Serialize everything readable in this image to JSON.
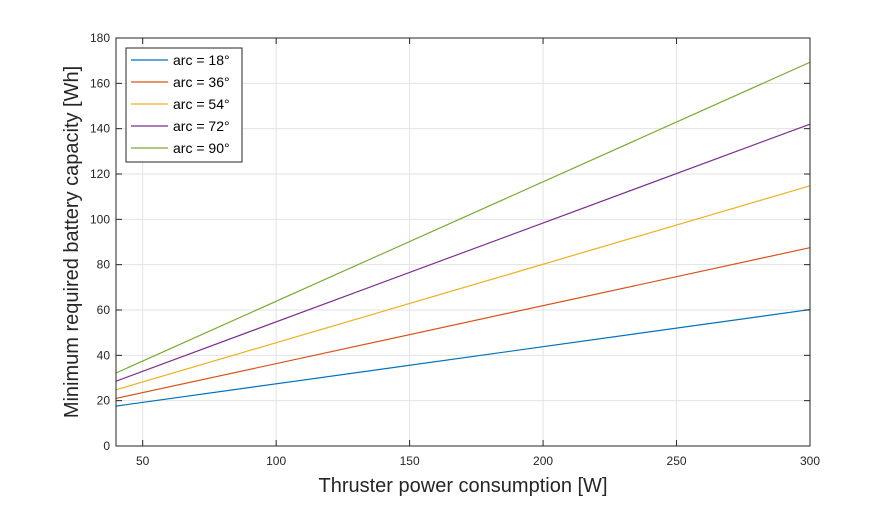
{
  "chart_data": {
    "type": "line",
    "title": "",
    "xlabel": "Thruster power consumption [W]",
    "ylabel": "Minimum required battery capacity [Wh]",
    "xlim": [
      40,
      300
    ],
    "ylim": [
      0,
      180
    ],
    "xticks": [
      50,
      100,
      150,
      200,
      250,
      300
    ],
    "yticks": [
      0,
      20,
      40,
      60,
      80,
      100,
      120,
      140,
      160,
      180
    ],
    "grid": true,
    "legend_position": "top-left",
    "series": [
      {
        "name": "arc = 18°",
        "color": "#0072BD",
        "x": [
          40,
          300
        ],
        "y": [
          17.6,
          60.2
        ]
      },
      {
        "name": "arc = 36°",
        "color": "#D95319",
        "x": [
          40,
          300
        ],
        "y": [
          21.0,
          87.5
        ]
      },
      {
        "name": "arc = 54°",
        "color": "#EDB120",
        "x": [
          40,
          300
        ],
        "y": [
          24.8,
          114.8
        ]
      },
      {
        "name": "arc = 72°",
        "color": "#7E2F8E",
        "x": [
          40,
          300
        ],
        "y": [
          28.6,
          142.0
        ]
      },
      {
        "name": "arc = 90°",
        "color": "#77AC30",
        "x": [
          40,
          300
        ],
        "y": [
          32.2,
          169.3
        ]
      }
    ]
  }
}
